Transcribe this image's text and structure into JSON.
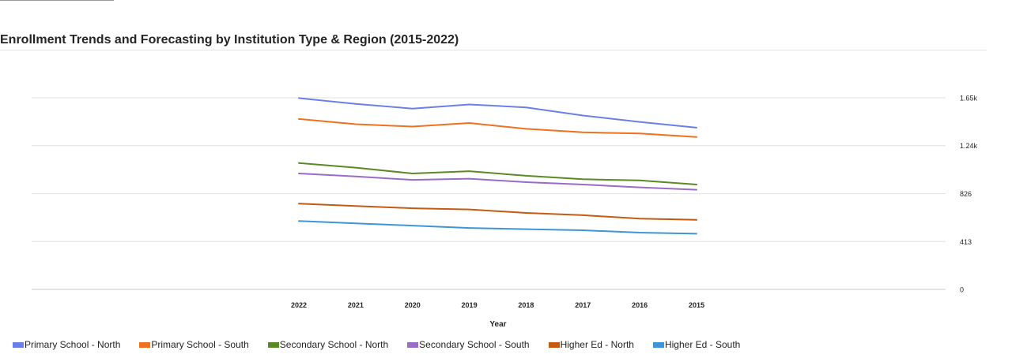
{
  "chart_data": {
    "type": "line",
    "title": "Enrollment Trends and Forecasting by Institution Type & Region (2015-2022)",
    "xlabel": "Year",
    "ylabel": "",
    "x": [
      "2022",
      "2021",
      "2020",
      "2019",
      "2018",
      "2017",
      "2016",
      "2015"
    ],
    "ylim": [
      0,
      1653
    ],
    "yticks": [
      {
        "value": 0,
        "label": "0"
      },
      {
        "value": 413,
        "label": "413"
      },
      {
        "value": 826,
        "label": "826"
      },
      {
        "value": 1240,
        "label": "1.24k"
      },
      {
        "value": 1653,
        "label": "1.65k"
      }
    ],
    "y_axis_position": "right",
    "grid": true,
    "legend_position": "bottom-left",
    "series": [
      {
        "name": "Primary School - North",
        "color": "#6B7FE8",
        "values": [
          1650,
          1600,
          1560,
          1595,
          1570,
          1500,
          1445,
          1395
        ]
      },
      {
        "name": "Primary School - South",
        "color": "#F07020",
        "values": [
          1470,
          1425,
          1405,
          1435,
          1385,
          1355,
          1345,
          1315
        ]
      },
      {
        "name": "Secondary School - North",
        "color": "#5A8A23",
        "values": [
          1090,
          1050,
          1000,
          1020,
          980,
          950,
          940,
          905
        ]
      },
      {
        "name": "Secondary School - South",
        "color": "#9A6CC8",
        "values": [
          1000,
          975,
          945,
          955,
          925,
          905,
          880,
          860
        ]
      },
      {
        "name": "Higher Ed - North",
        "color": "#C55A11",
        "values": [
          740,
          720,
          700,
          690,
          660,
          640,
          610,
          600
        ]
      },
      {
        "name": "Higher Ed - South",
        "color": "#3D95D8",
        "values": [
          590,
          570,
          550,
          530,
          520,
          510,
          490,
          480
        ]
      }
    ]
  }
}
